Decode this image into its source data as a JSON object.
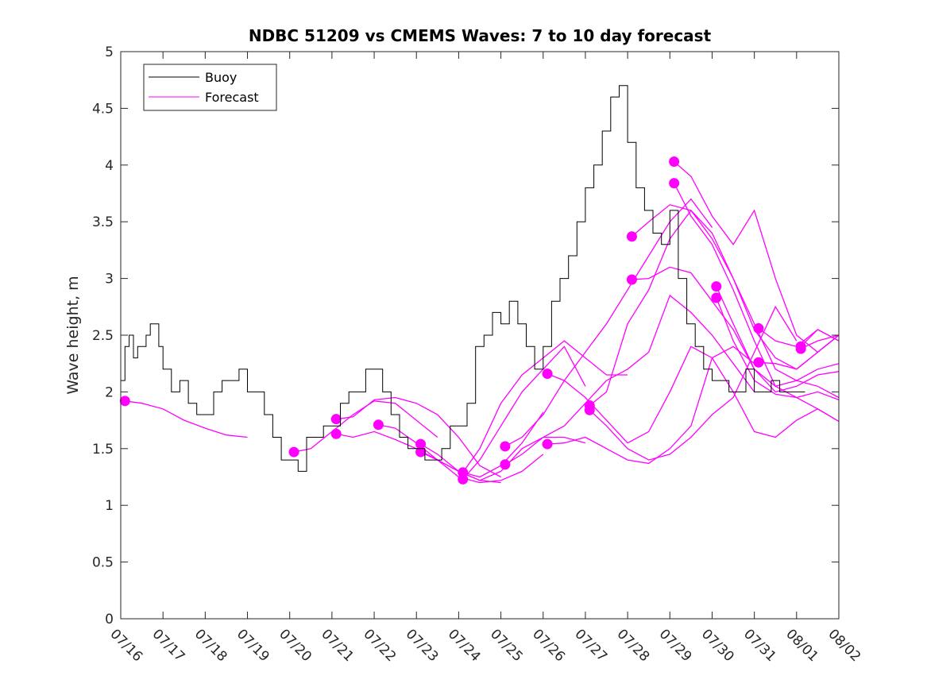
{
  "chart_data": {
    "type": "line",
    "title": "NDBC 51209 vs CMEMS Waves: 7 to 10 day forecast",
    "ylabel": "Wave height, m",
    "xlabel": "",
    "xlim": [
      "07/16",
      "08/02"
    ],
    "ylim": [
      0,
      5
    ],
    "x_ticks": [
      "07/16",
      "07/17",
      "07/18",
      "07/19",
      "07/20",
      "07/21",
      "07/22",
      "07/23",
      "07/24",
      "07/25",
      "07/26",
      "07/27",
      "07/28",
      "07/29",
      "07/30",
      "07/31",
      "08/01",
      "08/02"
    ],
    "y_ticks": [
      "0",
      "0.5",
      "1",
      "1.5",
      "2",
      "2.5",
      "3",
      "3.5",
      "4",
      "4.5",
      "5"
    ],
    "grid": false,
    "legend_position": "top-left",
    "x_units": "days after 07/16",
    "colors": {
      "buoy": "#000000",
      "forecast": "#ff00ff"
    },
    "series": [
      {
        "name": "Buoy",
        "color": "#000000",
        "x": [
          0.0,
          0.1,
          0.2,
          0.3,
          0.4,
          0.5,
          0.6,
          0.7,
          0.8,
          0.9,
          1.0,
          1.2,
          1.4,
          1.6,
          1.8,
          2.0,
          2.2,
          2.4,
          2.6,
          2.8,
          3.0,
          3.2,
          3.4,
          3.6,
          3.8,
          4.0,
          4.2,
          4.4,
          4.6,
          4.8,
          5.0,
          5.2,
          5.4,
          5.6,
          5.8,
          6.0,
          6.2,
          6.4,
          6.6,
          6.8,
          7.0,
          7.2,
          7.4,
          7.6,
          7.8,
          8.0,
          8.2,
          8.4,
          8.6,
          8.8,
          9.0,
          9.2,
          9.4,
          9.6,
          9.8,
          10.0,
          10.2,
          10.4,
          10.6,
          10.8,
          11.0,
          11.2,
          11.4,
          11.6,
          11.8,
          12.0,
          12.2,
          12.4,
          12.6,
          12.8,
          13.0,
          13.2,
          13.4,
          13.6,
          13.8,
          14.0,
          14.2,
          14.4,
          14.6,
          14.8,
          15.0,
          15.2,
          15.4,
          15.6,
          15.8,
          16.0,
          16.2
        ],
        "y": [
          2.1,
          2.4,
          2.5,
          2.3,
          2.4,
          2.4,
          2.5,
          2.6,
          2.6,
          2.4,
          2.2,
          2.0,
          2.1,
          1.9,
          1.8,
          1.8,
          2.0,
          2.1,
          2.1,
          2.2,
          2.0,
          2.0,
          1.8,
          1.6,
          1.4,
          1.4,
          1.3,
          1.6,
          1.6,
          1.7,
          1.7,
          1.9,
          2.0,
          2.0,
          2.2,
          2.2,
          2.0,
          1.8,
          1.6,
          1.5,
          1.5,
          1.4,
          1.4,
          1.5,
          1.7,
          1.7,
          1.9,
          2.4,
          2.5,
          2.7,
          2.6,
          2.8,
          2.6,
          2.4,
          2.2,
          2.4,
          2.8,
          3.0,
          3.2,
          3.5,
          3.8,
          4.0,
          4.3,
          4.6,
          4.7,
          4.2,
          3.8,
          3.6,
          3.4,
          3.3,
          3.6,
          3.0,
          2.6,
          2.4,
          2.2,
          2.1,
          2.1,
          2.0,
          2.0,
          2.2,
          2.0,
          2.0,
          2.1,
          2.0,
          2.0,
          2.0,
          2.0
        ]
      },
      {
        "name": "Forecast",
        "color": "#ff00ff",
        "segments": [
          {
            "marker": [
              0.1,
              1.92
            ],
            "x": [
              0.1,
              0.5,
              1.0,
              1.5,
              2.0,
              2.5,
              3.0
            ],
            "y": [
              1.92,
              1.9,
              1.85,
              1.75,
              1.68,
              1.62,
              1.6
            ]
          },
          {
            "marker": [
              4.1,
              1.47
            ],
            "x": [
              4.1,
              4.5,
              5.0,
              5.5,
              6.0,
              6.5,
              7.0,
              7.5
            ],
            "y": [
              1.47,
              1.5,
              1.65,
              1.8,
              1.92,
              1.9,
              1.75,
              1.6
            ]
          },
          {
            "marker": [
              5.1,
              1.76
            ],
            "x": [
              5.1,
              5.5,
              6.0,
              6.5,
              7.0,
              7.5,
              8.0,
              8.5,
              9.0
            ],
            "y": [
              1.76,
              1.78,
              1.93,
              1.95,
              1.9,
              1.8,
              1.6,
              1.35,
              1.25
            ]
          },
          {
            "marker": [
              5.1,
              1.63
            ],
            "x": [
              5.1,
              5.5,
              6.0,
              6.5,
              7.0,
              7.5,
              8.0,
              8.5,
              9.0
            ],
            "y": [
              1.63,
              1.6,
              1.65,
              1.58,
              1.5,
              1.4,
              1.3,
              1.22,
              1.2
            ]
          },
          {
            "marker": [
              6.1,
              1.71
            ],
            "x": [
              6.1,
              6.5,
              7.0,
              7.5,
              8.0,
              8.5,
              9.0,
              9.5,
              10.0
            ],
            "y": [
              1.71,
              1.68,
              1.55,
              1.4,
              1.25,
              1.2,
              1.22,
              1.3,
              1.45
            ]
          },
          {
            "marker": [
              7.1,
              1.54
            ],
            "x": [
              7.1,
              7.5,
              8.0,
              8.5,
              9.0,
              9.5,
              10.0,
              10.5,
              11.0
            ],
            "y": [
              1.54,
              1.45,
              1.3,
              1.22,
              1.3,
              1.5,
              1.6,
              1.6,
              1.55
            ]
          },
          {
            "marker": [
              7.1,
              1.47
            ],
            "x": [
              7.1,
              7.5,
              8.0,
              8.5,
              9.0,
              9.5,
              10.0
            ],
            "y": [
              1.47,
              1.4,
              1.3,
              1.25,
              1.35,
              1.55,
              1.82
            ]
          },
          {
            "marker": [
              8.1,
              1.29
            ],
            "x": [
              8.1,
              8.5,
              9.0,
              9.5,
              10.0,
              10.5,
              11.0,
              11.5,
              12.0
            ],
            "y": [
              1.29,
              1.5,
              1.9,
              2.15,
              2.3,
              2.45,
              2.3,
              2.15,
              2.15
            ]
          },
          {
            "marker": [
              8.1,
              1.23
            ],
            "x": [
              8.1,
              8.5,
              9.0,
              9.5,
              10.0,
              10.5,
              11.0
            ],
            "y": [
              1.23,
              1.4,
              1.7,
              2.0,
              2.2,
              2.4,
              2.05
            ]
          },
          {
            "marker": [
              9.1,
              1.52
            ],
            "x": [
              9.1,
              9.5,
              10.0,
              10.5,
              11.0,
              11.5,
              12.0,
              12.5,
              13.0,
              13.5,
              14.0
            ],
            "y": [
              1.52,
              1.6,
              1.8,
              2.1,
              2.35,
              2.6,
              2.9,
              3.2,
              3.5,
              3.7,
              3.45
            ]
          },
          {
            "marker": [
              9.1,
              1.36
            ],
            "x": [
              9.1,
              9.5,
              10.0,
              10.5,
              11.0,
              11.5,
              12.0,
              12.5,
              13.0,
              13.5,
              14.0,
              14.5,
              15.0
            ],
            "y": [
              1.36,
              1.45,
              1.6,
              1.7,
              1.9,
              2.1,
              2.2,
              2.35,
              2.85,
              2.7,
              2.5,
              2.25,
              2.0
            ]
          },
          {
            "marker": [
              10.1,
              2.16
            ],
            "x": [
              10.1,
              10.5,
              11.0,
              11.5,
              12.0,
              12.5,
              13.0,
              13.5,
              14.0,
              14.5,
              15.0,
              15.5,
              16.0,
              16.5,
              17.0
            ],
            "y": [
              2.16,
              2.1,
              1.95,
              1.75,
              1.55,
              1.65,
              2.0,
              2.4,
              2.3,
              2.0,
              1.65,
              1.6,
              1.75,
              1.85,
              1.74
            ]
          },
          {
            "marker": [
              10.1,
              1.54
            ],
            "x": [
              10.1,
              10.5,
              11.0,
              11.5,
              12.0,
              12.5,
              13.0,
              13.5,
              14.0,
              14.5,
              15.0
            ],
            "y": [
              1.54,
              1.55,
              1.6,
              1.5,
              1.4,
              1.37,
              1.5,
              1.7,
              2.3,
              2.4,
              2.25
            ]
          },
          {
            "marker": [
              11.1,
              1.88
            ],
            "x": [
              11.1,
              11.5,
              12.0,
              12.5,
              13.0,
              13.5,
              14.0,
              14.5,
              15.0,
              15.5,
              16.0,
              16.5,
              17.0
            ],
            "y": [
              1.88,
              2.0,
              2.6,
              2.9,
              3.35,
              3.6,
              3.4,
              3.0,
              2.6,
              2.2,
              2.1,
              2.05,
              1.95
            ]
          },
          {
            "marker": [
              11.1,
              1.84
            ],
            "x": [
              11.1,
              11.5,
              12.0,
              12.5,
              13.0,
              13.5,
              14.0,
              14.5,
              15.0,
              15.5,
              16.0
            ],
            "y": [
              1.84,
              1.7,
              1.5,
              1.4,
              1.45,
              1.6,
              1.8,
              1.95,
              2.35,
              2.75,
              2.45
            ]
          },
          {
            "marker": [
              12.1,
              3.37
            ],
            "x": [
              12.1,
              12.5,
              13.0,
              13.5,
              14.0,
              14.5,
              15.0,
              15.5,
              16.0,
              16.5,
              17.0
            ],
            "y": [
              3.37,
              3.5,
              3.65,
              3.6,
              3.35,
              3.0,
              2.55,
              2.3,
              2.2,
              2.35,
              2.5
            ]
          },
          {
            "marker": [
              12.1,
              2.99
            ],
            "x": [
              12.1,
              12.5,
              13.0,
              13.5,
              14.0,
              14.5,
              15.0,
              15.5,
              16.0,
              16.5,
              17.0
            ],
            "y": [
              2.99,
              3.0,
              3.1,
              3.05,
              2.8,
              2.55,
              2.2,
              2.05,
              2.1,
              2.2,
              2.25
            ]
          },
          {
            "marker": [
              13.1,
              4.03
            ],
            "x": [
              13.1,
              13.5,
              14.0,
              14.5,
              15.0,
              15.5,
              16.0,
              16.5,
              17.0
            ],
            "y": [
              4.03,
              3.9,
              3.55,
              3.3,
              3.6,
              3.0,
              2.5,
              2.35,
              2.5
            ]
          },
          {
            "marker": [
              13.1,
              3.84
            ],
            "x": [
              13.1,
              13.5,
              14.0,
              14.5,
              15.0,
              15.5,
              16.0,
              16.5,
              17.0
            ],
            "y": [
              3.84,
              3.55,
              3.3,
              2.9,
              2.45,
              2.05,
              1.95,
              1.85,
              1.74
            ]
          },
          {
            "marker": [
              14.1,
              2.93
            ],
            "x": [
              14.1,
              14.5,
              15.0,
              15.5,
              16.0,
              16.5,
              17.0
            ],
            "y": [
              2.93,
              2.6,
              2.2,
              2.0,
              2.05,
              2.15,
              2.18
            ]
          },
          {
            "marker": [
              14.1,
              2.83
            ],
            "x": [
              14.1,
              14.5,
              15.0,
              15.5,
              16.0,
              16.5,
              17.0
            ],
            "y": [
              2.83,
              2.45,
              2.1,
              1.98,
              1.95,
              2.0,
              1.93
            ]
          },
          {
            "marker": [
              15.1,
              2.56
            ],
            "x": [
              15.1,
              15.5,
              16.0,
              16.5,
              17.0
            ],
            "y": [
              2.56,
              2.45,
              2.4,
              2.55,
              2.45
            ]
          },
          {
            "marker": [
              15.1,
              2.26
            ],
            "x": [
              15.1,
              15.5,
              16.0,
              16.5,
              17.0
            ],
            "y": [
              2.26,
              2.25,
              2.2,
              2.35,
              2.5
            ]
          },
          {
            "marker": [
              16.1,
              2.4
            ],
            "x": [
              16.1,
              16.5,
              17.0
            ],
            "y": [
              2.4,
              2.55,
              2.45
            ]
          },
          {
            "marker": [
              16.1,
              2.38
            ],
            "x": [
              16.1,
              16.5,
              17.0
            ],
            "y": [
              2.38,
              2.45,
              2.5
            ]
          }
        ]
      }
    ]
  }
}
